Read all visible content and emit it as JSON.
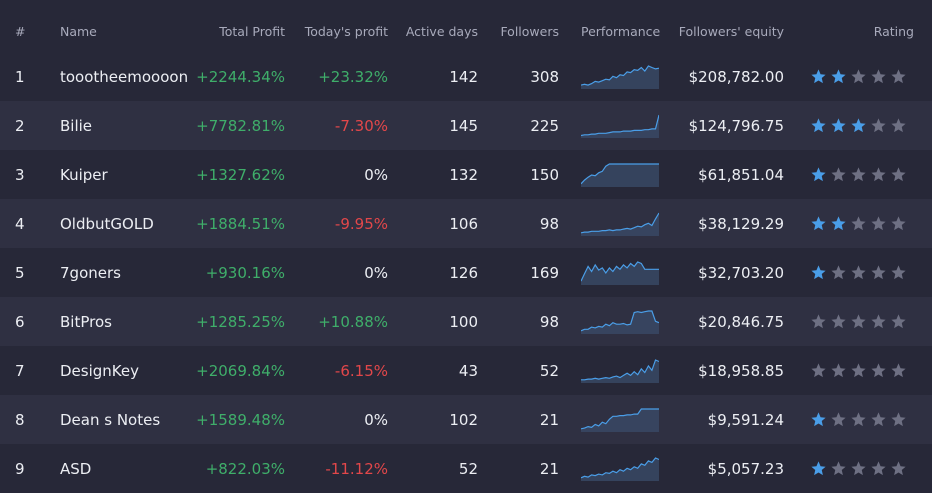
{
  "colors": {
    "background": "#272838",
    "row_alt": "#2f3042",
    "positive": "#3fae6a",
    "negative": "#e2474a",
    "accent": "#4a9ee8",
    "star_off": "#6e7083"
  },
  "headers": {
    "rank": "#",
    "name": "Name",
    "total_profit": "Total Profit",
    "todays_profit": "Today's profit",
    "active_days": "Active days",
    "followers": "Followers",
    "performance": "Performance",
    "followers_equity": "Followers' equity",
    "rating": "Rating"
  },
  "rows": [
    {
      "rank": "1",
      "name": "toootheemoooon",
      "total_profit": "+2244.34%",
      "todays_profit": "+23.32%",
      "todays_sign": "pos",
      "active_days": "142",
      "followers": "308",
      "equity": "$208,782.00",
      "rating": 2,
      "performance": [
        4,
        5,
        4,
        6,
        9,
        8,
        10,
        12,
        11,
        16,
        14,
        18,
        17,
        22,
        21,
        25,
        24,
        28,
        23,
        30,
        28,
        26,
        27
      ]
    },
    {
      "rank": "2",
      "name": "Bilie",
      "total_profit": "+7782.81%",
      "todays_profit": "-7.30%",
      "todays_sign": "neg",
      "active_days": "145",
      "followers": "225",
      "equity": "$124,796.75",
      "rating": 3,
      "performance": [
        2,
        3,
        3,
        4,
        4,
        5,
        5,
        5,
        6,
        7,
        7,
        7,
        8,
        8,
        8,
        9,
        9,
        9,
        10,
        10,
        11,
        11,
        30
      ]
    },
    {
      "rank": "3",
      "name": "Kuiper",
      "total_profit": "+1327.62%",
      "todays_profit": "0%",
      "todays_sign": "neutral",
      "active_days": "132",
      "followers": "150",
      "equity": "$61,851.04",
      "rating": 1,
      "performance": [
        3,
        8,
        12,
        15,
        14,
        18,
        20,
        27,
        30,
        30,
        30,
        30,
        30,
        30,
        30,
        30,
        30,
        30,
        30,
        30,
        30,
        30,
        30
      ]
    },
    {
      "rank": "4",
      "name": "OldbutGOLD",
      "total_profit": "+1884.51%",
      "todays_profit": "-9.95%",
      "todays_sign": "neg",
      "active_days": "106",
      "followers": "98",
      "equity": "$38,129.29",
      "rating": 2,
      "performance": [
        3,
        4,
        4,
        5,
        5,
        5,
        6,
        6,
        7,
        6,
        7,
        7,
        8,
        9,
        8,
        10,
        12,
        11,
        14,
        16,
        13,
        22,
        30
      ]
    },
    {
      "rank": "5",
      "name": "7goners",
      "total_profit": "+930.16%",
      "todays_profit": "0%",
      "todays_sign": "neutral",
      "active_days": "126",
      "followers": "169",
      "equity": "$32,703.20",
      "rating": 1,
      "performance": [
        4,
        14,
        24,
        17,
        26,
        19,
        22,
        15,
        22,
        17,
        24,
        20,
        26,
        22,
        28,
        24,
        30,
        28,
        20,
        20,
        20,
        20,
        20
      ]
    },
    {
      "rank": "6",
      "name": "BitPros",
      "total_profit": "+1285.25%",
      "todays_profit": "+10.88%",
      "todays_sign": "pos",
      "active_days": "100",
      "followers": "98",
      "equity": "$20,846.75",
      "rating": 0,
      "performance": [
        3,
        5,
        5,
        8,
        7,
        9,
        8,
        12,
        10,
        14,
        12,
        12,
        13,
        11,
        12,
        28,
        29,
        28,
        29,
        30,
        30,
        16,
        14
      ]
    },
    {
      "rank": "7",
      "name": "DesignKey",
      "total_profit": "+2069.84%",
      "todays_profit": "-6.15%",
      "todays_sign": "neg",
      "active_days": "43",
      "followers": "52",
      "equity": "$18,958.85",
      "rating": 0,
      "performance": [
        3,
        3,
        4,
        4,
        5,
        4,
        5,
        6,
        5,
        7,
        8,
        6,
        9,
        12,
        9,
        14,
        10,
        18,
        13,
        22,
        16,
        30,
        28
      ]
    },
    {
      "rank": "8",
      "name": "Dean s Notes",
      "total_profit": "+1589.48%",
      "todays_profit": "0%",
      "todays_sign": "neutral",
      "active_days": "102",
      "followers": "21",
      "equity": "$9,591.24",
      "rating": 1,
      "performance": [
        3,
        4,
        6,
        5,
        9,
        7,
        12,
        10,
        16,
        20,
        20,
        21,
        21,
        22,
        22,
        23,
        23,
        30,
        30,
        30,
        30,
        30,
        30
      ]
    },
    {
      "rank": "9",
      "name": "ASD",
      "total_profit": "+822.03%",
      "todays_profit": "-11.12%",
      "todays_sign": "neg",
      "active_days": "52",
      "followers": "21",
      "equity": "$5,057.23",
      "rating": 1,
      "performance": [
        3,
        5,
        4,
        7,
        6,
        8,
        7,
        10,
        9,
        12,
        10,
        14,
        12,
        16,
        14,
        18,
        16,
        22,
        20,
        26,
        24,
        30,
        28
      ]
    }
  ]
}
